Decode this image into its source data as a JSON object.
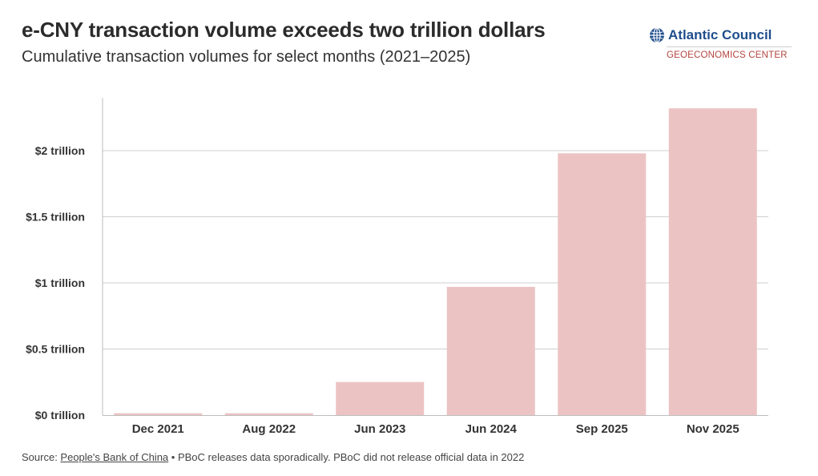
{
  "header": {
    "title": "e-CNY transaction volume exceeds two trillion dollars",
    "subtitle": "Cumulative transaction volumes for select months (2021–2025)"
  },
  "brand": {
    "name": "Atlantic Council",
    "subtitle": "GEOECONOMICS CENTER",
    "icon": "globe-icon",
    "name_color": "#1f4e8c",
    "subtitle_color": "#b3453f"
  },
  "chart_data": {
    "type": "bar",
    "categories": [
      "Dec 2021",
      "Aug 2022",
      "Jun 2023",
      "Jun 2024",
      "Sep 2025",
      "Nov 2025"
    ],
    "values": [
      0.014,
      0.014,
      0.25,
      0.97,
      1.98,
      2.32
    ],
    "title": "",
    "xlabel": "",
    "ylabel": "",
    "ylim": [
      0,
      2.4
    ],
    "yticks": [
      0,
      0.5,
      1,
      1.5,
      2
    ],
    "ytick_labels": [
      "$0 trillion",
      "$0.5 trillion",
      "$1 trillion",
      "$1.5 trillion",
      "$2 trillion"
    ],
    "grid": true,
    "bar_color": "#ecc3c3"
  },
  "footer": {
    "source_prefix": "Source: ",
    "source_link": "People's Bank of China",
    "source_note": " • PBoC releases data sporadically. PBoC did not release official data in 2022"
  }
}
